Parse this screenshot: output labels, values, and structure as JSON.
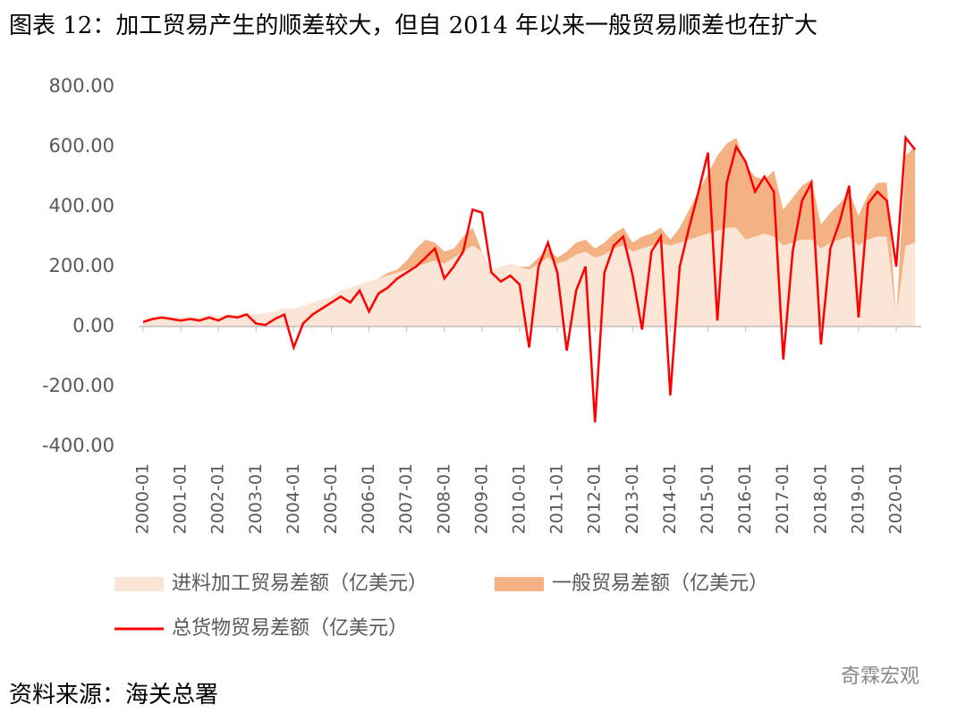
{
  "chart_data": {
    "type": "area_line",
    "title": "图表 12：加工贸易产生的顺差较大，但自 2014 年以来一般贸易顺差也在扩大",
    "source": "资料来源：海关总署",
    "watermark": "奇霖宏观",
    "categories": [
      "2000-01",
      null,
      null,
      null,
      "2001-01",
      null,
      null,
      null,
      "2002-01",
      null,
      null,
      null,
      "2003-01",
      null,
      null,
      null,
      "2004-01",
      null,
      null,
      null,
      "2005-01",
      null,
      null,
      null,
      "2006-01",
      null,
      null,
      null,
      "2007-01",
      null,
      null,
      null,
      "2008-01",
      null,
      null,
      null,
      "2009-01",
      null,
      null,
      null,
      "2010-01",
      null,
      null,
      null,
      "2011-01",
      null,
      null,
      null,
      "2012-01",
      null,
      null,
      null,
      "2013-01",
      null,
      null,
      null,
      "2014-01",
      null,
      null,
      null,
      "2015-01",
      null,
      null,
      null,
      "2016-01",
      null,
      null,
      null,
      "2017-01",
      null,
      null,
      null,
      "2018-01",
      null,
      null,
      null,
      "2019-01",
      null,
      null,
      null,
      "2020-01",
      null,
      null
    ],
    "series": [
      {
        "name": "进料加工贸易差额（亿美元）",
        "kind": "area",
        "color": "#fbe5d6",
        "values": [
          25,
          30,
          30,
          35,
          30,
          35,
          30,
          40,
          35,
          40,
          40,
          45,
          40,
          45,
          50,
          60,
          60,
          70,
          80,
          90,
          100,
          120,
          130,
          140,
          150,
          160,
          170,
          180,
          190,
          200,
          210,
          220,
          210,
          230,
          250,
          270,
          250,
          190,
          200,
          210,
          200,
          190,
          210,
          230,
          210,
          220,
          240,
          250,
          230,
          240,
          260,
          270,
          250,
          260,
          270,
          280,
          270,
          280,
          290,
          300,
          310,
          320,
          330,
          330,
          290,
          300,
          310,
          300,
          270,
          280,
          290,
          290,
          260,
          280,
          290,
          300,
          270,
          290,
          300,
          300,
          30,
          270,
          280
        ]
      },
      {
        "name": "一般贸易差额（亿美元）",
        "kind": "area",
        "color": "#f4b183",
        "values": [
          0,
          0,
          0,
          0,
          0,
          0,
          0,
          0,
          0,
          0,
          0,
          0,
          0,
          0,
          0,
          0,
          0,
          0,
          0,
          0,
          0,
          0,
          0,
          0,
          0,
          0,
          10,
          10,
          30,
          60,
          80,
          60,
          40,
          30,
          50,
          60,
          0,
          0,
          0,
          0,
          0,
          10,
          20,
          30,
          20,
          30,
          40,
          40,
          30,
          40,
          50,
          60,
          30,
          40,
          40,
          50,
          20,
          50,
          100,
          150,
          200,
          250,
          280,
          300,
          250,
          200,
          180,
          220,
          120,
          150,
          180,
          200,
          80,
          100,
          120,
          150,
          100,
          150,
          180,
          180,
          0,
          300,
          320
        ]
      },
      {
        "name": "总货物贸易差额（亿美元）",
        "kind": "line",
        "color": "#ff0000",
        "values": [
          15,
          25,
          30,
          25,
          20,
          25,
          20,
          30,
          20,
          35,
          30,
          40,
          10,
          5,
          25,
          40,
          -70,
          10,
          40,
          60,
          80,
          100,
          80,
          120,
          50,
          110,
          130,
          160,
          180,
          200,
          230,
          260,
          160,
          200,
          250,
          390,
          380,
          180,
          150,
          170,
          140,
          -70,
          200,
          280,
          180,
          -80,
          120,
          200,
          -320,
          180,
          270,
          300,
          170,
          -10,
          250,
          300,
          -230,
          200,
          330,
          450,
          580,
          20,
          480,
          600,
          550,
          450,
          500,
          450,
          -110,
          250,
          420,
          480,
          -60,
          260,
          350,
          470,
          30,
          410,
          450,
          420,
          200,
          630,
          590
        ]
      }
    ],
    "ylim": [
      -400,
      800
    ],
    "yticks": [
      {
        "value": -400,
        "label": "-400.00"
      },
      {
        "value": -200,
        "label": "-200.00"
      },
      {
        "value": 0,
        "label": "0.00"
      },
      {
        "value": 200,
        "label": "200.00"
      },
      {
        "value": 400,
        "label": "400.00"
      },
      {
        "value": 600,
        "label": "600.00"
      },
      {
        "value": 800,
        "label": "800.00"
      }
    ],
    "grid": false
  }
}
